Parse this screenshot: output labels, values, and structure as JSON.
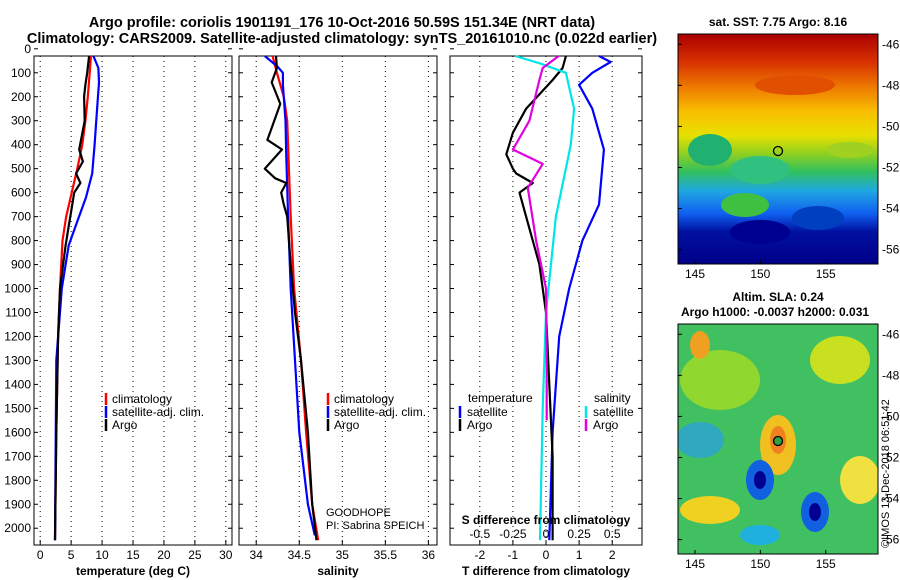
{
  "header": {
    "line1": "Argo profile: coriolis 1901191_176 10-Oct-2016 50.59S 151.34E (NRT data)",
    "line2": "Climatology: CARS2009. Satellite-adjusted climatology: synTS_20161010.nc (0.022d earlier)"
  },
  "depth_ticks": [
    0,
    100,
    200,
    300,
    400,
    500,
    600,
    700,
    800,
    900,
    1000,
    1100,
    1200,
    1300,
    1400,
    1500,
    1600,
    1700,
    1800,
    1900,
    2000
  ],
  "legends": {
    "temperature": [
      "climatology",
      "satellite-adj. clim.",
      "Argo"
    ],
    "salinity": [
      "climatology",
      "satellite-adj. clim.",
      "Argo"
    ],
    "diff_head_left": "temperature",
    "diff_head_right": "salinity",
    "diff_left": [
      "satellite",
      "Argo"
    ],
    "diff_right": [
      "satellite",
      "Argo"
    ]
  },
  "float_info": {
    "project": "GOODHOPE",
    "pi": "PI: Sabrina SPEICH"
  },
  "colors": {
    "climatology": "#ff0000",
    "satellite": "#0000ff",
    "argo": "#000000",
    "sat_s_diff": "#00e5e5",
    "argo_s_diff": "#e000e0"
  },
  "chart_data": [
    {
      "type": "line",
      "xlabel": "temperature (deg C)",
      "ylabel": "",
      "xlim": [
        -1,
        31
      ],
      "ylim": [
        2070,
        30
      ],
      "x_ticks": [
        0,
        5,
        10,
        15,
        20,
        25,
        30
      ],
      "series": [
        {
          "name": "climatology",
          "color": "#ff0000",
          "x": [
            8.2,
            8.0,
            7.7,
            7.3,
            6.8,
            6.0,
            5.1,
            4.2,
            3.6,
            3.2,
            2.9,
            2.6,
            2.4
          ],
          "y": [
            30,
            100,
            200,
            300,
            400,
            500,
            600,
            700,
            800,
            1000,
            1200,
            1600,
            2050
          ]
        },
        {
          "name": "satellite-adj. clim.",
          "color": "#0000ff",
          "x": [
            8.6,
            9.4,
            9.5,
            9.2,
            8.8,
            8.4,
            7.4,
            6.0,
            4.6,
            3.5,
            2.6,
            2.4
          ],
          "y": [
            30,
            80,
            140,
            250,
            400,
            520,
            620,
            720,
            820,
            1000,
            1300,
            2050
          ]
        },
        {
          "name": "Argo",
          "color": "#000000",
          "x": [
            7.9,
            7.6,
            7.3,
            7.1,
            7.2,
            6.3,
            6.9,
            5.8,
            6.5,
            5.5,
            5.0,
            4.6,
            4.1,
            3.7,
            3.2,
            2.9,
            2.6,
            2.4
          ],
          "y": [
            30,
            100,
            150,
            200,
            300,
            420,
            470,
            520,
            560,
            600,
            680,
            740,
            820,
            900,
            1000,
            1200,
            1600,
            2050
          ]
        }
      ]
    },
    {
      "type": "line",
      "xlabel": "salinity",
      "ylabel": "",
      "xlim": [
        33.8,
        36.1
      ],
      "ylim": [
        2070,
        30
      ],
      "x_ticks": [
        34,
        34.5,
        35,
        35.5,
        36
      ],
      "series": [
        {
          "name": "climatology",
          "color": "#ff0000",
          "x": [
            34.19,
            34.24,
            34.32,
            34.36,
            34.37,
            34.38,
            34.4,
            34.44,
            34.52,
            34.58,
            34.65,
            34.72
          ],
          "y": [
            30,
            100,
            200,
            300,
            400,
            500,
            700,
            1000,
            1300,
            1600,
            1900,
            2050
          ]
        },
        {
          "name": "satellite-adj. clim.",
          "color": "#0000ff",
          "x": [
            34.1,
            34.25,
            34.31,
            34.31,
            34.34,
            34.35,
            34.37,
            34.4,
            34.45,
            34.5,
            34.6,
            34.68
          ],
          "y": [
            30,
            75,
            100,
            150,
            300,
            450,
            700,
            1000,
            1300,
            1600,
            1900,
            2030
          ]
        },
        {
          "name": "Argo",
          "color": "#000000",
          "x": [
            34.23,
            34.24,
            34.18,
            34.28,
            34.13,
            34.3,
            34.1,
            34.22,
            34.35,
            34.29,
            34.32,
            34.36,
            34.4,
            34.45,
            34.52,
            34.6,
            34.65,
            34.7
          ],
          "y": [
            30,
            80,
            140,
            230,
            380,
            420,
            500,
            540,
            560,
            600,
            650,
            700,
            900,
            1100,
            1300,
            1600,
            1900,
            2050
          ]
        }
      ]
    },
    {
      "type": "line",
      "xlabel": "T difference from climatology",
      "xlabel_top": "S difference from climatology",
      "ylabel": "",
      "xlim": [
        -2.9,
        2.9
      ],
      "ylim": [
        2070,
        30
      ],
      "x_ticks": [
        -2,
        -1,
        0,
        1,
        2
      ],
      "x2_ticks": [
        -0.5,
        -0.25,
        0,
        0.25,
        0.5
      ],
      "x2_tick_labels": [
        "-0.5",
        "-0.25",
        "0",
        "0.25",
        "0.5"
      ],
      "series": [
        {
          "name": "temperature satellite",
          "color": "#0000ff",
          "x": [
            1.6,
            1.95,
            1.4,
            1.0,
            1.4,
            1.75,
            1.6,
            1.1,
            0.7,
            0.4,
            0.2,
            0.1
          ],
          "y": [
            30,
            55,
            100,
            150,
            250,
            420,
            650,
            800,
            1000,
            1200,
            1600,
            2050
          ]
        },
        {
          "name": "temperature Argo",
          "color": "#000000",
          "x": [
            0.6,
            0.5,
            0.2,
            -0.6,
            -1.0,
            -1.2,
            -1.0,
            -0.9,
            -0.4,
            -0.8,
            -0.6,
            -0.2,
            0.0,
            0.1,
            0.2,
            0.2
          ],
          "y": [
            30,
            80,
            130,
            250,
            350,
            440,
            500,
            520,
            560,
            600,
            700,
            900,
            1100,
            1400,
            1700,
            2050
          ]
        },
        {
          "name": "salinity satellite",
          "color": "#00e5e5",
          "x": [
            -0.93,
            -0.2,
            0.6,
            0.85,
            0.75,
            0.3,
            0.0,
            -0.1,
            -0.18
          ],
          "y": [
            30,
            60,
            100,
            250,
            400,
            700,
            1100,
            1500,
            2050
          ]
        },
        {
          "name": "salinity Argo",
          "color": "#e000e0",
          "x": [
            0.38,
            -0.1,
            -0.2,
            -0.5,
            -1.0,
            -0.1,
            -0.55,
            -0.3,
            0.0,
            0.02,
            0.02
          ],
          "y": [
            30,
            80,
            130,
            300,
            420,
            480,
            580,
            800,
            1000,
            1300,
            1550
          ]
        }
      ]
    },
    {
      "type": "heatmap",
      "title": "sat. SST: 7.75 Argo: 8.16",
      "x_ticks": [
        145,
        150,
        155
      ],
      "y_ticks": [
        -46,
        -48,
        -50,
        -52,
        -54,
        -56
      ],
      "xlim": [
        143.7,
        159
      ],
      "ylim": [
        -56.7,
        -45.5
      ],
      "float_position": [
        151.34,
        -50.59
      ]
    },
    {
      "type": "heatmap",
      "title": "Altim. SLA: 0.24",
      "subtitle": "Argo h1000: -0.0037 h2000: 0.031",
      "x_ticks": [
        145,
        150,
        155
      ],
      "y_ticks": [
        -46,
        -48,
        -50,
        -52,
        -54,
        -56
      ],
      "xlim": [
        143.7,
        159
      ],
      "ylim": [
        -56.7,
        -45.5
      ],
      "float_position": [
        151.34,
        -50.59
      ]
    }
  ],
  "stamp": "©IMOS 13-Dec-2018 06:51:42"
}
